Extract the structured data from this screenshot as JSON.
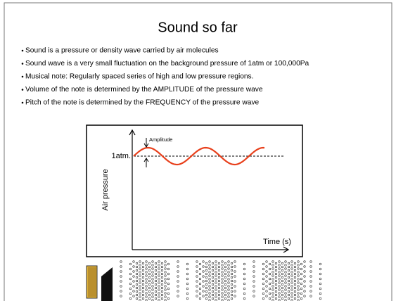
{
  "title": "Sound so far",
  "bullets": [
    "Sound is a pressure or density wave carried by air molecules",
    "Sound wave is a very small fluctuation on the background pressure of 1atm or 100,000Pa",
    "Musical note: Regularly spaced series of high and low pressure regions.",
    "Volume of the note is determined by the AMPLITUDE of the pressure wave",
    "Pitch of the note is determined by the FREQUENCY of the pressure wave"
  ],
  "diagram": {
    "y_label": "Air pressure",
    "x_label": "Time (s)",
    "amplitude_label": "Amplitude",
    "reference_label": "1atm."
  }
}
